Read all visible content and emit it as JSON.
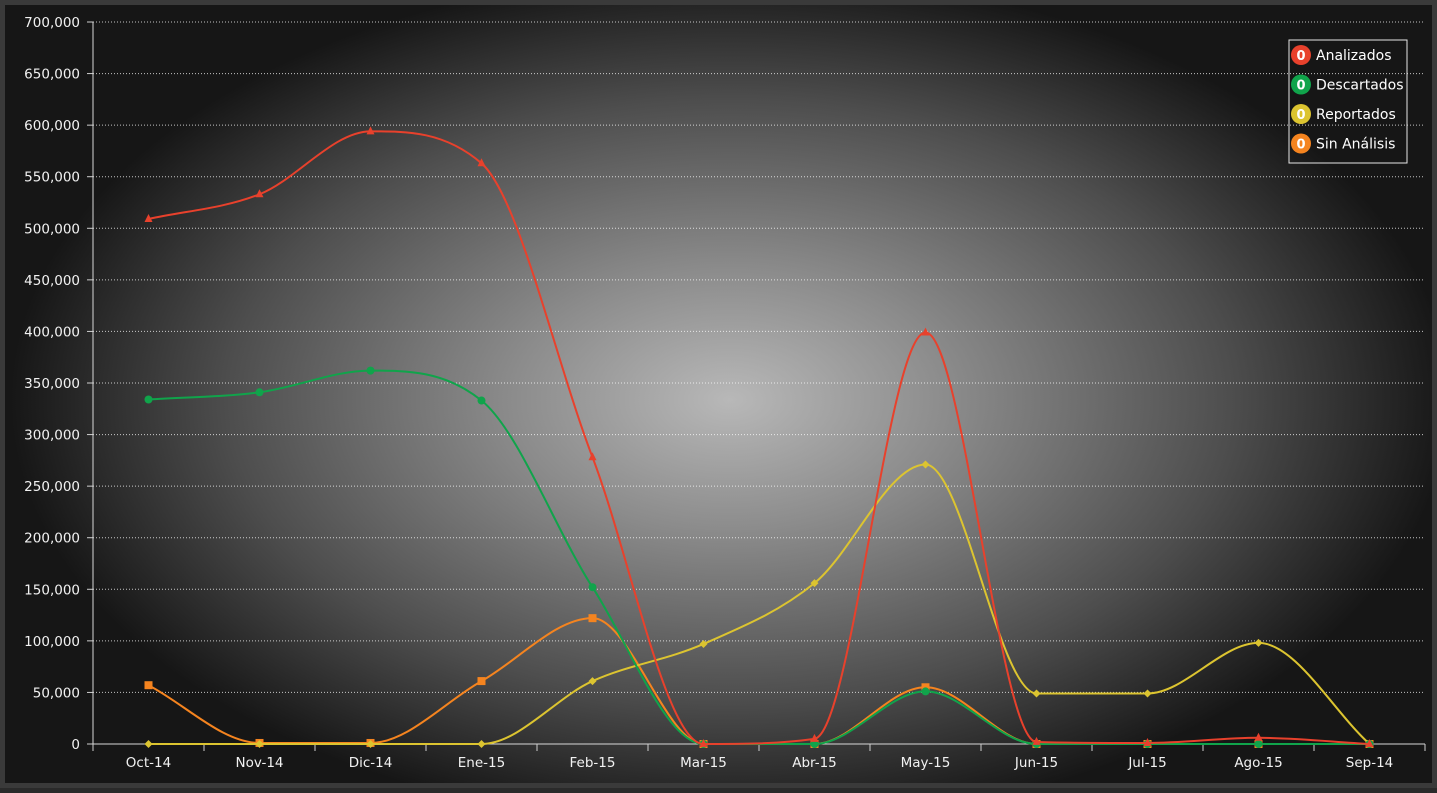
{
  "chart_data": {
    "type": "line",
    "categories": [
      "Oct-14",
      "Nov-14",
      "Dic-14",
      "Ene-15",
      "Feb-15",
      "Mar-15",
      "Abr-15",
      "May-15",
      "Jun-15",
      "Jul-15",
      "Ago-15",
      "Sep-14"
    ],
    "ylim": [
      0,
      700000
    ],
    "y_ticks": [
      0,
      50000,
      100000,
      150000,
      200000,
      250000,
      300000,
      350000,
      400000,
      450000,
      500000,
      550000,
      600000,
      650000,
      700000
    ],
    "y_tick_labels": [
      "0",
      "50,000",
      "100,000",
      "150,000",
      "200,000",
      "250,000",
      "300,000",
      "350,000",
      "400,000",
      "450,000",
      "500,000",
      "550,000",
      "600,000",
      "650,000",
      "700,000"
    ],
    "grid": "horizontal dotted",
    "smooth": true,
    "legend_position": "top-right",
    "series": [
      {
        "name": "Analizados",
        "badge": "0",
        "color": "#e8412c",
        "marker": "triangle",
        "values": [
          509000,
          533000,
          594000,
          563000,
          278000,
          0,
          5000,
          399000,
          2000,
          1000,
          6000,
          0
        ]
      },
      {
        "name": "Descartados",
        "badge": "0",
        "color": "#10a44b",
        "marker": "circle",
        "values": [
          334000,
          341000,
          362000,
          333000,
          152000,
          0,
          0,
          51000,
          0,
          0,
          0,
          0
        ]
      },
      {
        "name": "Reportados",
        "badge": "0",
        "color": "#dcc430",
        "marker": "diamond",
        "values": [
          0,
          0,
          0,
          0,
          61000,
          97000,
          156000,
          271000,
          49000,
          49000,
          98000,
          0
        ]
      },
      {
        "name": "Sin Análisis",
        "badge": "0",
        "color": "#f5841f",
        "marker": "square",
        "values": [
          57000,
          1000,
          1000,
          61000,
          122000,
          0,
          0,
          55000,
          0,
          0,
          0,
          0
        ]
      }
    ]
  }
}
